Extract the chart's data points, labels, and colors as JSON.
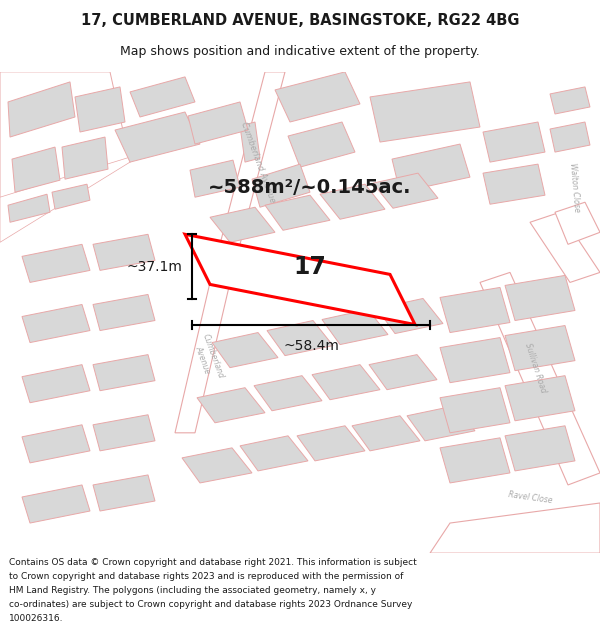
{
  "title_line1": "17, CUMBERLAND AVENUE, BASINGSTOKE, RG22 4BG",
  "title_line2": "Map shows position and indicative extent of the property.",
  "footer_text": "Contains OS data © Crown copyright and database right 2021. This information is subject to Crown copyright and database rights 2023 and is reproduced with the permission of HM Land Registry. The polygons (including the associated geometry, namely x, y co-ordinates) are subject to Crown copyright and database rights 2023 Ordnance Survey 100026316.",
  "area_label": "~588m²/~0.145ac.",
  "width_label": "~58.4m",
  "height_label": "~37.1m",
  "property_number": "17",
  "map_bg": "#ffffff",
  "building_fill": "#d8d8d8",
  "building_edge": "#e8a8a8",
  "road_edge": "#e8a8a8",
  "highlight_color": "#ff0000",
  "text_color": "#1a1a1a",
  "street_label_color": "#aaaaaa",
  "title_fontsize": 10.5,
  "subtitle_fontsize": 9,
  "footer_fontsize": 6.5,
  "area_fontsize": 14,
  "meas_fontsize": 10,
  "num_fontsize": 17
}
